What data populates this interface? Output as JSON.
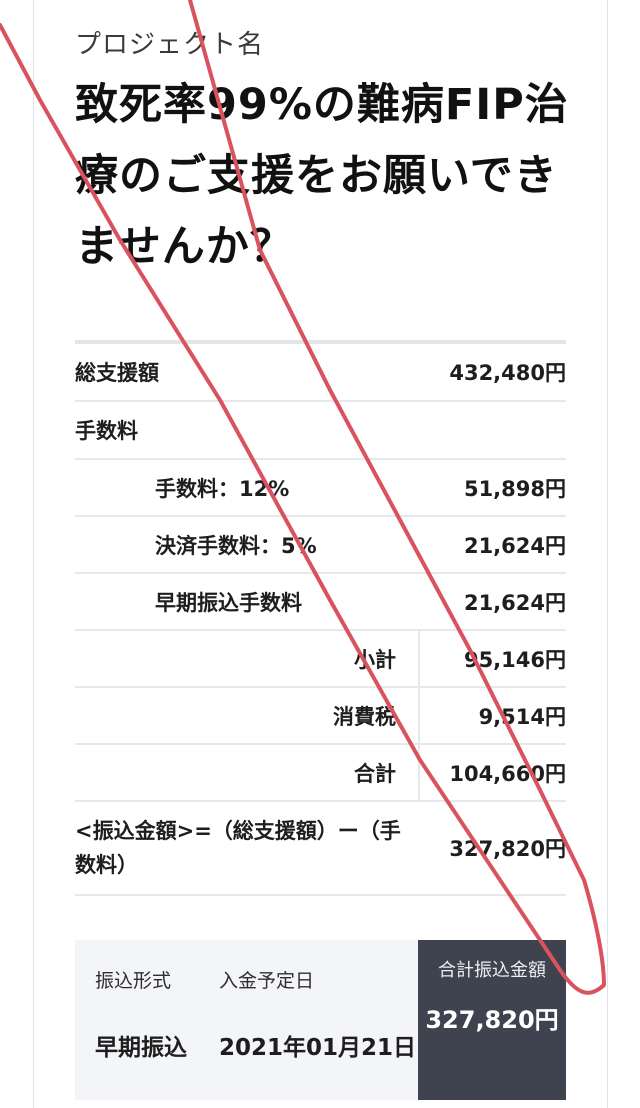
{
  "project": {
    "label": "プロジェクト名",
    "title": "致死率99%の難病FIP治療のご支援をお願いできませんか？"
  },
  "fees": {
    "total_support": {
      "label": "総支援額",
      "value": "432,480円"
    },
    "fee_header": {
      "label": "手数料"
    },
    "fee_12": {
      "label": "手数料：12%",
      "value": "51,898円"
    },
    "settlement_fee": {
      "label": "決済手数料：5%",
      "value": "21,624円"
    },
    "early_transfer_fee": {
      "label": "早期振込手数料",
      "value": "21,624円"
    },
    "subtotal": {
      "label": "小計",
      "value": "95,146円"
    },
    "tax": {
      "label": "消費税",
      "value": "9,514円"
    },
    "total": {
      "label": "合計",
      "value": "104,660円"
    },
    "transfer_amount": {
      "label": "<振込金額>=（総支援額）ー（手数料）",
      "value": "327,820円"
    }
  },
  "summary": {
    "transfer_type_header": "振込形式",
    "deposit_date_header": "入金予定日",
    "total_transfer_header": "合計振込金額",
    "transfer_type_value": "早期振込",
    "deposit_date_value": "2021年01月21日",
    "total_transfer_value": "327,820円"
  },
  "colors": {
    "annotation_stroke": "#d9535f",
    "total_box_bg": "#3f434f",
    "summary_bg": "#f4f5f8"
  }
}
